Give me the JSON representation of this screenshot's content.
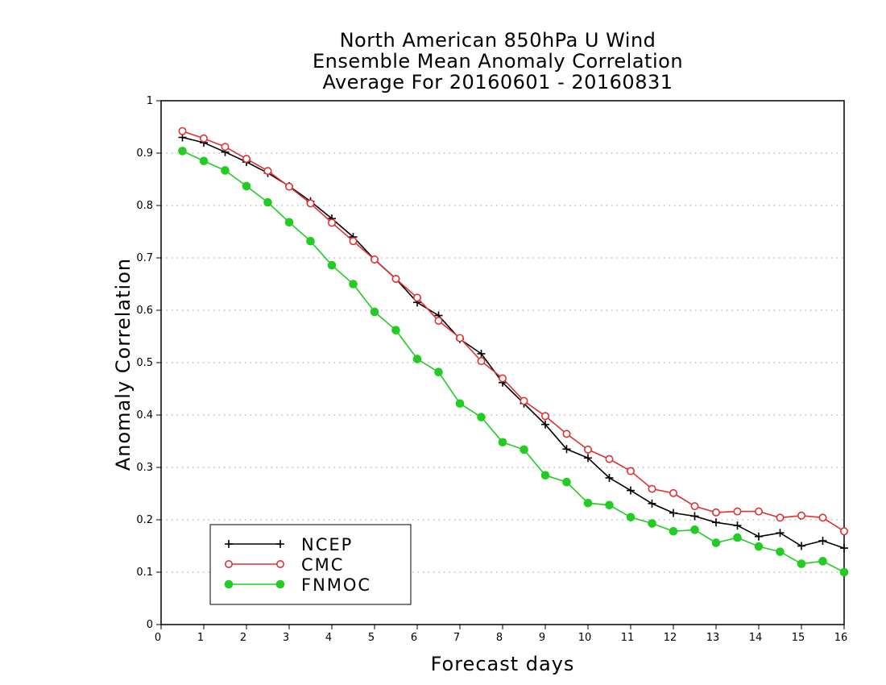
{
  "chart_data": {
    "type": "line",
    "title_lines": [
      "North American 850hPa U Wind",
      "Ensemble Mean Anomaly Correlation",
      "Average For 20160601 - 20160831"
    ],
    "xlabel": "Forecast days",
    "ylabel": "Anomaly Correlation",
    "xlim": [
      0,
      16
    ],
    "ylim": [
      0,
      1
    ],
    "x_ticks": [
      "0",
      "1",
      "2",
      "3",
      "4",
      "5",
      "6",
      "7",
      "8",
      "9",
      "10",
      "11",
      "12",
      "13",
      "14",
      "15",
      "16"
    ],
    "y_ticks": [
      "0",
      "0.1",
      "0.2",
      "0.3",
      "0.4",
      "0.5",
      "0.6",
      "0.7",
      "0.8",
      "0.9",
      "1"
    ],
    "grid": "horizontal dotted",
    "legend_position": "bottom-left",
    "x": [
      0.5,
      1,
      1.5,
      2,
      2.5,
      3,
      3.5,
      4,
      4.5,
      5,
      5.5,
      6,
      6.5,
      7,
      7.5,
      8,
      8.5,
      9,
      9.5,
      10,
      10.5,
      11,
      11.5,
      12,
      12.5,
      13,
      13.5,
      14,
      14.5,
      15,
      15.5,
      16
    ],
    "series": [
      {
        "name": "NCEP",
        "color": "#000000",
        "marker": "plus",
        "values": [
          0.93,
          0.92,
          0.902,
          0.883,
          0.862,
          0.837,
          0.808,
          0.775,
          0.74,
          0.697,
          0.66,
          0.615,
          0.59,
          0.545,
          0.517,
          0.462,
          0.422,
          0.382,
          0.335,
          0.318,
          0.28,
          0.256,
          0.231,
          0.213,
          0.207,
          0.195,
          0.189,
          0.168,
          0.175,
          0.15,
          0.16,
          0.146
        ]
      },
      {
        "name": "CMC",
        "color": "#e03030",
        "marker": "open-circle",
        "values": [
          0.942,
          0.928,
          0.912,
          0.889,
          0.866,
          0.836,
          0.804,
          0.767,
          0.732,
          0.697,
          0.66,
          0.624,
          0.58,
          0.547,
          0.503,
          0.47,
          0.427,
          0.398,
          0.364,
          0.334,
          0.316,
          0.293,
          0.259,
          0.251,
          0.226,
          0.214,
          0.216,
          0.216,
          0.204,
          0.208,
          0.204,
          0.178
        ]
      },
      {
        "name": "FNMOC",
        "color": "#22cc22",
        "marker": "filled-circle",
        "values": [
          0.904,
          0.885,
          0.867,
          0.837,
          0.806,
          0.768,
          0.732,
          0.686,
          0.65,
          0.597,
          0.562,
          0.507,
          0.482,
          0.422,
          0.396,
          0.348,
          0.334,
          0.285,
          0.272,
          0.232,
          0.228,
          0.205,
          0.193,
          0.178,
          0.181,
          0.156,
          0.166,
          0.149,
          0.139,
          0.116,
          0.121,
          0.1
        ]
      }
    ]
  }
}
